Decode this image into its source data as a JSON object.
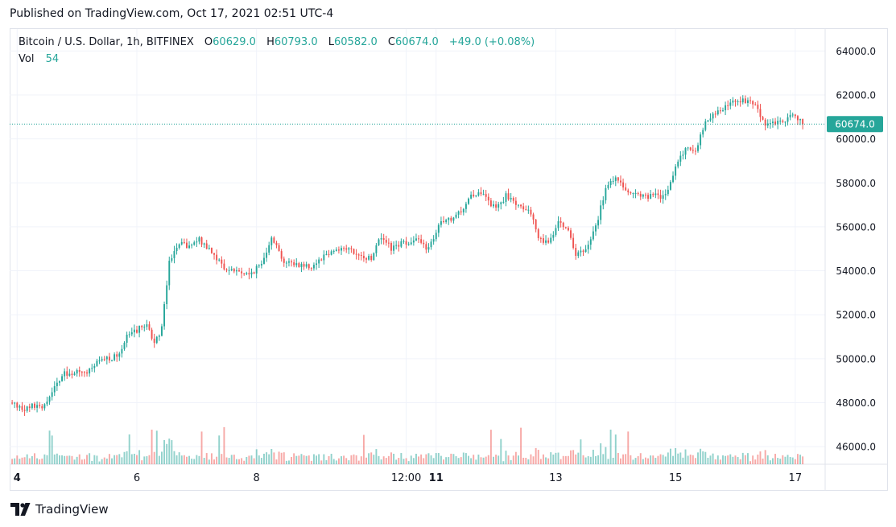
{
  "published": "Published on TradingView.com, Oct 17, 2021 02:51 UTC-4",
  "legend": {
    "symbol": "Bitcoin / U.S. Dollar, 1h, BITFINEX",
    "open_key": "O",
    "open": "60629.0",
    "high_key": "H",
    "high": "60793.0",
    "low_key": "L",
    "low": "60582.0",
    "close_key": "C",
    "close": "60674.0",
    "change": "+49.0 (+0.08%)",
    "vol_label": "Vol",
    "vol_value": "54"
  },
  "footer": {
    "brand": "TradingView"
  },
  "colors": {
    "up": "#26a69a",
    "down": "#ef5350",
    "grid": "#f0f3fa",
    "axis_text": "#131722",
    "price_tag": "#26a69a"
  },
  "chart_data": {
    "type": "candlestick",
    "timeframe": "1h",
    "ylim": [
      45200,
      65000
    ],
    "y_ticks": [
      46000,
      48000,
      50000,
      52000,
      54000,
      56000,
      58000,
      60000,
      62000,
      64000
    ],
    "y_tick_labels": [
      "46000.0",
      "48000.0",
      "50000.0",
      "52000.0",
      "54000.0",
      "56000.0",
      "58000.0",
      "60000.0",
      "62000.0",
      "64000.0"
    ],
    "x_tick_labels": [
      "4",
      "6",
      "8",
      "12:00",
      "11",
      "13",
      "15",
      "17"
    ],
    "x_tick_bold": [
      true,
      false,
      false,
      false,
      true,
      false,
      false,
      false
    ],
    "x_tick_hours": [
      0,
      48,
      96,
      156,
      168,
      216,
      264,
      312
    ],
    "x_range_hours": [
      -3,
      324
    ],
    "last_price": 60674,
    "last_price_label": "60674.0",
    "volume_max": 170,
    "close_anchors": [
      [
        -3,
        48000
      ],
      [
        2,
        47700
      ],
      [
        6,
        47900
      ],
      [
        10,
        47700
      ],
      [
        14,
        48500
      ],
      [
        18,
        49300
      ],
      [
        24,
        49400
      ],
      [
        28,
        49300
      ],
      [
        32,
        49800
      ],
      [
        36,
        50000
      ],
      [
        40,
        50100
      ],
      [
        44,
        51000
      ],
      [
        48,
        51300
      ],
      [
        52,
        51600
      ],
      [
        55,
        50700
      ],
      [
        58,
        51400
      ],
      [
        61,
        54500
      ],
      [
        65,
        55200
      ],
      [
        69,
        55100
      ],
      [
        73,
        55400
      ],
      [
        78,
        54900
      ],
      [
        83,
        54100
      ],
      [
        88,
        54000
      ],
      [
        93,
        53800
      ],
      [
        98,
        54300
      ],
      [
        102,
        55600
      ],
      [
        107,
        54400
      ],
      [
        112,
        54300
      ],
      [
        118,
        54200
      ],
      [
        123,
        54700
      ],
      [
        128,
        55000
      ],
      [
        133,
        55000
      ],
      [
        137,
        54600
      ],
      [
        142,
        54600
      ],
      [
        146,
        55600
      ],
      [
        150,
        55000
      ],
      [
        155,
        55300
      ],
      [
        160,
        55400
      ],
      [
        165,
        55000
      ],
      [
        170,
        56200
      ],
      [
        174,
        56300
      ],
      [
        178,
        56700
      ],
      [
        182,
        57500
      ],
      [
        187,
        57400
      ],
      [
        192,
        56800
      ],
      [
        196,
        57400
      ],
      [
        200,
        57100
      ],
      [
        205,
        56800
      ],
      [
        209,
        55600
      ],
      [
        213,
        55200
      ],
      [
        217,
        56300
      ],
      [
        221,
        55900
      ],
      [
        224,
        54700
      ],
      [
        228,
        54900
      ],
      [
        232,
        56000
      ],
      [
        236,
        57700
      ],
      [
        240,
        58300
      ],
      [
        245,
        57600
      ],
      [
        250,
        57400
      ],
      [
        255,
        57400
      ],
      [
        260,
        57400
      ],
      [
        264,
        58700
      ],
      [
        268,
        59600
      ],
      [
        272,
        59500
      ],
      [
        275,
        60500
      ],
      [
        279,
        61200
      ],
      [
        283,
        61300
      ],
      [
        288,
        61800
      ],
      [
        292,
        61700
      ],
      [
        296,
        61500
      ],
      [
        300,
        60700
      ],
      [
        304,
        60700
      ],
      [
        308,
        60900
      ],
      [
        312,
        61100
      ],
      [
        315,
        60674
      ]
    ]
  }
}
